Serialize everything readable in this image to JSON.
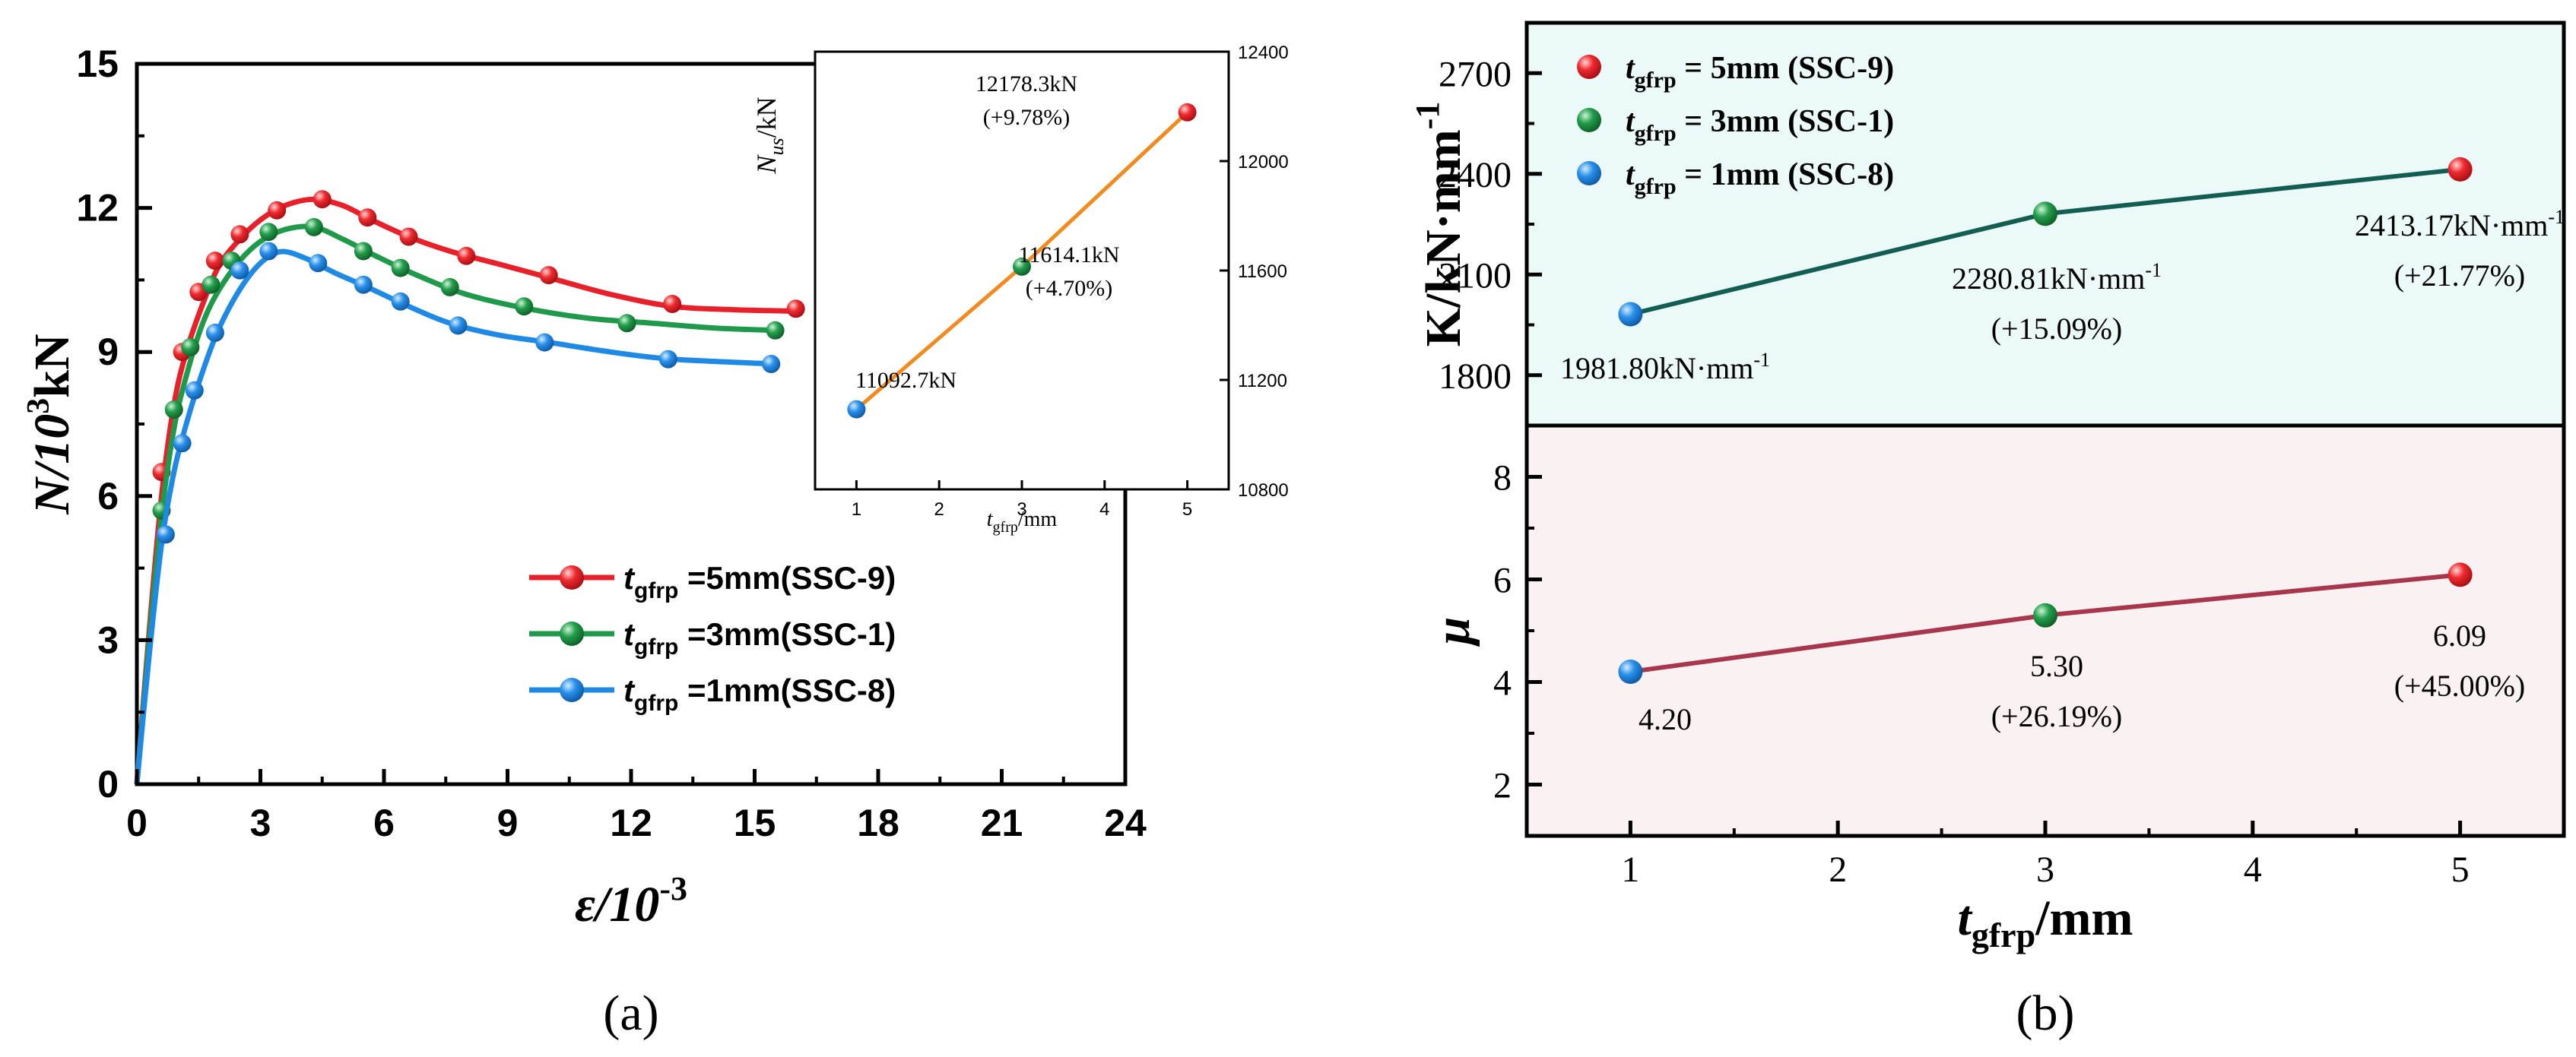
{
  "panel_a_label": "(a)",
  "panel_b_label": "(b)",
  "colors": {
    "red": "#e8202a",
    "green": "#1f9a4a",
    "blue": "#1f8ae6",
    "orange": "#f28a1e",
    "k_line": "#135e53",
    "mu_line": "#a8374d",
    "k_bg": "#ecf9f9",
    "mu_bg": "#f9f1f2"
  },
  "chart_data": [
    {
      "id": "a-main",
      "type": "line",
      "title": "",
      "xlabel": "ε/10",
      "xlabel_sup": "-3",
      "ylabel": "N/10",
      "ylabel_sup": "3",
      "ylabel_unit": "kN",
      "xlim": [
        0,
        24
      ],
      "ylim": [
        0,
        15
      ],
      "xticks": [
        "0",
        "3",
        "6",
        "9",
        "12",
        "15",
        "18",
        "21",
        "24"
      ],
      "yticks": [
        "0",
        "3",
        "6",
        "9",
        "12",
        "15"
      ],
      "legend": {
        "placement": "lower-center",
        "entries": [
          {
            "sym": "t",
            "sub": "gfrp",
            "text": " =5mm(SSC-9)"
          },
          {
            "sym": "t",
            "sub": "gfrp",
            "text": " =3mm(SSC-1)"
          },
          {
            "sym": "t",
            "sub": "gfrp",
            "text": " =1mm(SSC-8)"
          }
        ]
      },
      "series": [
        {
          "name": "tgfrp=5mm(SSC-9)",
          "color": "red",
          "curve": [
            [
              0,
              0
            ],
            [
              0.3,
              3.2
            ],
            [
              0.6,
              6.0
            ],
            [
              0.9,
              7.9
            ],
            [
              1.2,
              9.0
            ],
            [
              1.6,
              10.0
            ],
            [
              2.0,
              10.8
            ],
            [
              2.5,
              11.35
            ],
            [
              3.0,
              11.75
            ],
            [
              3.6,
              12.05
            ],
            [
              4.3,
              12.18
            ],
            [
              5.0,
              12.05
            ],
            [
              5.7,
              11.75
            ],
            [
              6.6,
              11.4
            ],
            [
              7.6,
              11.1
            ],
            [
              8.7,
              10.85
            ],
            [
              10.0,
              10.55
            ],
            [
              11.5,
              10.2
            ],
            [
              13.0,
              9.95
            ],
            [
              14.5,
              9.88
            ],
            [
              16.0,
              9.85
            ]
          ],
          "markers": [
            [
              0.6,
              6.5
            ],
            [
              1.1,
              9.0
            ],
            [
              1.5,
              10.25
            ],
            [
              1.9,
              10.9
            ],
            [
              2.5,
              11.45
            ],
            [
              3.4,
              11.95
            ],
            [
              4.5,
              12.18
            ],
            [
              5.6,
              11.8
            ],
            [
              6.6,
              11.4
            ],
            [
              8.0,
              11.0
            ],
            [
              10.0,
              10.6
            ],
            [
              13.0,
              10.0
            ],
            [
              16.0,
              9.9
            ]
          ]
        },
        {
          "name": "tgfrp=3mm(SSC-1)",
          "color": "green",
          "curve": [
            [
              0,
              0
            ],
            [
              0.3,
              3.0
            ],
            [
              0.6,
              5.6
            ],
            [
              0.9,
              7.4
            ],
            [
              1.2,
              8.5
            ],
            [
              1.6,
              9.6
            ],
            [
              2.0,
              10.3
            ],
            [
              2.5,
              10.9
            ],
            [
              3.0,
              11.3
            ],
            [
              3.6,
              11.55
            ],
            [
              4.3,
              11.6
            ],
            [
              5.0,
              11.35
            ],
            [
              5.8,
              11.0
            ],
            [
              6.8,
              10.6
            ],
            [
              8.0,
              10.2
            ],
            [
              9.5,
              9.9
            ],
            [
              11.0,
              9.7
            ],
            [
              12.5,
              9.6
            ],
            [
              14.0,
              9.5
            ],
            [
              15.5,
              9.45
            ]
          ],
          "markers": [
            [
              0.6,
              5.7
            ],
            [
              0.9,
              7.8
            ],
            [
              1.3,
              9.1
            ],
            [
              1.8,
              10.4
            ],
            [
              2.3,
              10.9
            ],
            [
              3.2,
              11.5
            ],
            [
              4.3,
              11.6
            ],
            [
              5.5,
              11.1
            ],
            [
              6.4,
              10.75
            ],
            [
              7.6,
              10.35
            ],
            [
              9.4,
              9.95
            ],
            [
              11.9,
              9.6
            ],
            [
              15.5,
              9.45
            ]
          ]
        },
        {
          "name": "tgfrp=1mm(SSC-8)",
          "color": "blue",
          "curve": [
            [
              0,
              0
            ],
            [
              0.3,
              2.7
            ],
            [
              0.6,
              5.0
            ],
            [
              0.9,
              6.5
            ],
            [
              1.2,
              7.5
            ],
            [
              1.6,
              8.6
            ],
            [
              2.0,
              9.5
            ],
            [
              2.5,
              10.3
            ],
            [
              3.0,
              10.85
            ],
            [
              3.5,
              11.09
            ],
            [
              4.1,
              10.95
            ],
            [
              4.8,
              10.65
            ],
            [
              5.6,
              10.35
            ],
            [
              6.6,
              9.95
            ],
            [
              7.6,
              9.6
            ],
            [
              8.8,
              9.35
            ],
            [
              10.0,
              9.2
            ],
            [
              11.5,
              9.0
            ],
            [
              13.0,
              8.85
            ],
            [
              15.5,
              8.75
            ]
          ],
          "markers": [
            [
              0.7,
              5.2
            ],
            [
              1.1,
              7.1
            ],
            [
              1.4,
              8.2
            ],
            [
              1.9,
              9.4
            ],
            [
              2.5,
              10.7
            ],
            [
              3.2,
              11.1
            ],
            [
              4.4,
              10.85
            ],
            [
              5.5,
              10.4
            ],
            [
              6.4,
              10.05
            ],
            [
              7.8,
              9.55
            ],
            [
              9.9,
              9.2
            ],
            [
              12.9,
              8.85
            ],
            [
              15.4,
              8.75
            ]
          ]
        }
      ]
    },
    {
      "id": "a-inset",
      "type": "line",
      "xlabel": "t",
      "xlabel_sub": "gfrp",
      "xlabel_unit": "/mm",
      "ylabel": "N",
      "ylabel_sub": "us",
      "ylabel_unit": "/kN",
      "xlim": [
        0.5,
        5.5
      ],
      "ylim": [
        10800,
        12400
      ],
      "xticks": [
        "1",
        "2",
        "3",
        "4",
        "5"
      ],
      "yticks": [
        "10800",
        "11200",
        "11600",
        "12000",
        "12400"
      ],
      "x": [
        1,
        3,
        5
      ],
      "values": [
        11092.7,
        11614.1,
        12178.3
      ],
      "marker_colors": [
        "blue",
        "green",
        "red"
      ],
      "labels": [
        {
          "text": "11092.7kN"
        },
        {
          "text": "11614.1kN",
          "pct": "(+4.70%)"
        },
        {
          "text": "12178.3kN",
          "pct": "(+9.78%)"
        }
      ]
    },
    {
      "id": "b-top",
      "type": "line",
      "ylabel": "K/kN·mm",
      "ylabel_sup": "-1",
      "xlim": [
        0.5,
        5.5
      ],
      "ylim": [
        1650,
        2850
      ],
      "yticks": [
        "1800",
        "2100",
        "2400",
        "2700"
      ],
      "x": [
        1,
        3,
        5
      ],
      "values": [
        1981.8,
        2280.81,
        2413.17
      ],
      "marker_colors": [
        "blue",
        "green",
        "red"
      ],
      "labels": [
        {
          "text": "1981.80kN·mm",
          "sup": "-1"
        },
        {
          "text": "2280.81kN·mm",
          "sup": "-1",
          "pct": "(+15.09%)"
        },
        {
          "text": "2413.17kN·mm",
          "sup": "-1",
          "pct": "(+21.77%)"
        }
      ],
      "legend": {
        "placement": "top-left",
        "entries": [
          {
            "sym": "t",
            "sub": "gfrp",
            "text": " = 5mm (SSC-9)"
          },
          {
            "sym": "t",
            "sub": "gfrp",
            "text": " = 3mm (SSC-1)"
          },
          {
            "sym": "t",
            "sub": "gfrp",
            "text": " = 1mm (SSC-8)"
          }
        ]
      }
    },
    {
      "id": "b-bottom",
      "type": "line",
      "ylabel": "μ",
      "xlabel": "t",
      "xlabel_sub": "gfrp",
      "xlabel_unit": "/mm",
      "xlim": [
        0.5,
        5.5
      ],
      "ylim": [
        1,
        9
      ],
      "xticks": [
        "1",
        "2",
        "3",
        "4",
        "5"
      ],
      "yticks": [
        "2",
        "4",
        "6",
        "8"
      ],
      "x": [
        1,
        3,
        5
      ],
      "values": [
        4.2,
        5.3,
        6.09
      ],
      "marker_colors": [
        "blue",
        "green",
        "red"
      ],
      "labels": [
        {
          "text": "4.20"
        },
        {
          "text": "5.30",
          "pct": "(+26.19%)"
        },
        {
          "text": "6.09",
          "pct": "(+45.00%)"
        }
      ]
    }
  ]
}
